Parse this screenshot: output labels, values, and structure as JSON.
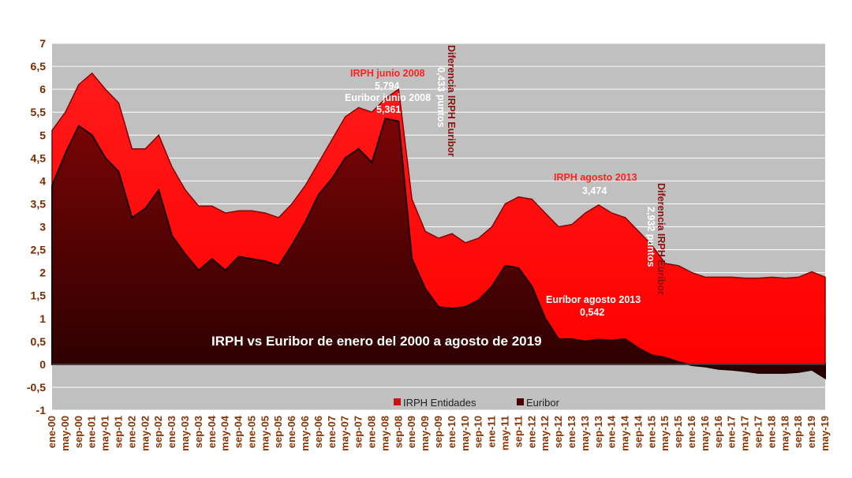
{
  "chart_data": {
    "type": "area",
    "title": "IRPH vs Euribor de enero del 2000 a agosto de 2019",
    "ylim": [
      -1,
      7
    ],
    "yticks": [
      "-1",
      "-0,5",
      "0",
      "0,5",
      "1",
      "1,5",
      "2",
      "2,5",
      "3",
      "3,5",
      "4",
      "4,5",
      "5",
      "5,5",
      "6",
      "6,5",
      "7"
    ],
    "categories": [
      "ene-00",
      "may-00",
      "sep-00",
      "ene-01",
      "may-01",
      "sep-01",
      "ene-02",
      "may-02",
      "sep-02",
      "ene-03",
      "may-03",
      "sep-03",
      "ene-04",
      "may-04",
      "sep-04",
      "ene-05",
      "may-05",
      "sep-05",
      "ene-06",
      "may-06",
      "sep-06",
      "ene-07",
      "may-07",
      "sep-07",
      "ene-08",
      "may-08",
      "sep-08",
      "ene-09",
      "may-09",
      "sep-09",
      "ene-10",
      "may-10",
      "sep-10",
      "ene-11",
      "may-11",
      "sep-11",
      "ene-12",
      "may-12",
      "sep-12",
      "ene-13",
      "may-13",
      "sep-13",
      "ene-14",
      "may-14",
      "sep-14",
      "ene-15",
      "may-15",
      "sep-15",
      "ene-16",
      "may-16",
      "sep-16",
      "ene-17",
      "may-17",
      "sep-17",
      "ene-18",
      "may-18",
      "sep-18",
      "ene-19",
      "may-19"
    ],
    "grid": true,
    "legend_position": "bottom",
    "series": [
      {
        "name": "IRPH Entidades",
        "color": "#ff0a0a",
        "values": [
          5.1,
          5.5,
          6.1,
          6.35,
          6.0,
          5.7,
          4.7,
          4.7,
          5.0,
          4.3,
          3.8,
          3.45,
          3.45,
          3.3,
          3.35,
          3.35,
          3.3,
          3.2,
          3.5,
          3.9,
          4.4,
          4.9,
          5.4,
          5.6,
          5.5,
          5.794,
          6.0,
          3.6,
          2.9,
          2.75,
          2.85,
          2.65,
          2.75,
          3.0,
          3.5,
          3.65,
          3.6,
          3.3,
          3.0,
          3.05,
          3.3,
          3.474,
          3.3,
          3.2,
          2.9,
          2.6,
          2.2,
          2.15,
          2.0,
          1.9,
          1.9,
          1.9,
          1.88,
          1.88,
          1.9,
          1.88,
          1.9,
          2.02,
          1.9
        ]
      },
      {
        "name": "Euribor",
        "color": "#4a0000",
        "values": [
          3.9,
          4.6,
          5.2,
          5.0,
          4.5,
          4.2,
          3.2,
          3.4,
          3.8,
          2.8,
          2.4,
          2.05,
          2.3,
          2.05,
          2.35,
          2.3,
          2.25,
          2.15,
          2.6,
          3.1,
          3.7,
          4.05,
          4.5,
          4.7,
          4.4,
          5.361,
          5.3,
          2.3,
          1.65,
          1.25,
          1.22,
          1.25,
          1.4,
          1.7,
          2.15,
          2.1,
          1.7,
          1.0,
          0.55,
          0.55,
          0.5,
          0.542,
          0.52,
          0.55,
          0.35,
          0.2,
          0.15,
          0.05,
          -0.02,
          -0.05,
          -0.1,
          -0.12,
          -0.15,
          -0.19,
          -0.19,
          -0.19,
          -0.17,
          -0.12,
          -0.3
        ]
      }
    ],
    "annotations": {
      "irph_2008_label": "IRPH junio 2008",
      "irph_2008_value": "5,794",
      "euribor_2008_label": "Euribor junio 2008",
      "euribor_2008_value": "5,361",
      "diff_2008_label": "Diferencia IRPH Euribor",
      "diff_2008_value": "0,433 puntos",
      "irph_2013_label": "IRPH agosto 2013",
      "irph_2013_value": "3,474",
      "euribor_2013_label": "Euríbor agosto 2013",
      "euribor_2013_value": "0,542",
      "diff_2013_label": "Diferencia IRPH Euribor",
      "diff_2013_value": "2,932 puntos"
    }
  }
}
